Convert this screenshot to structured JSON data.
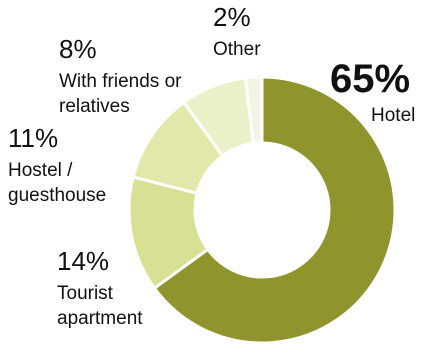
{
  "chart_data": {
    "type": "pie",
    "variant": "donut",
    "categories": [
      "Hotel",
      "Tourist apartment",
      "Hostel / guesthouse",
      "With friends or relatives",
      "Other"
    ],
    "values": [
      65,
      14,
      11,
      8,
      2
    ],
    "value_labels": [
      "65%",
      "14%",
      "11%",
      "8%",
      "2%"
    ],
    "label_lines": [
      [
        "Hotel"
      ],
      [
        "Tourist",
        "apartment"
      ],
      [
        "Hostel /",
        "guesthouse"
      ],
      [
        "With friends or",
        "relatives"
      ],
      [
        "Other"
      ]
    ],
    "colors": [
      "#8f952c",
      "#d7e093",
      "#e1e8aa",
      "#ebf0c9",
      "#f3f4e4"
    ],
    "slice_border_color": "#ffffff",
    "start": "top, clockwise",
    "legend": "none"
  }
}
